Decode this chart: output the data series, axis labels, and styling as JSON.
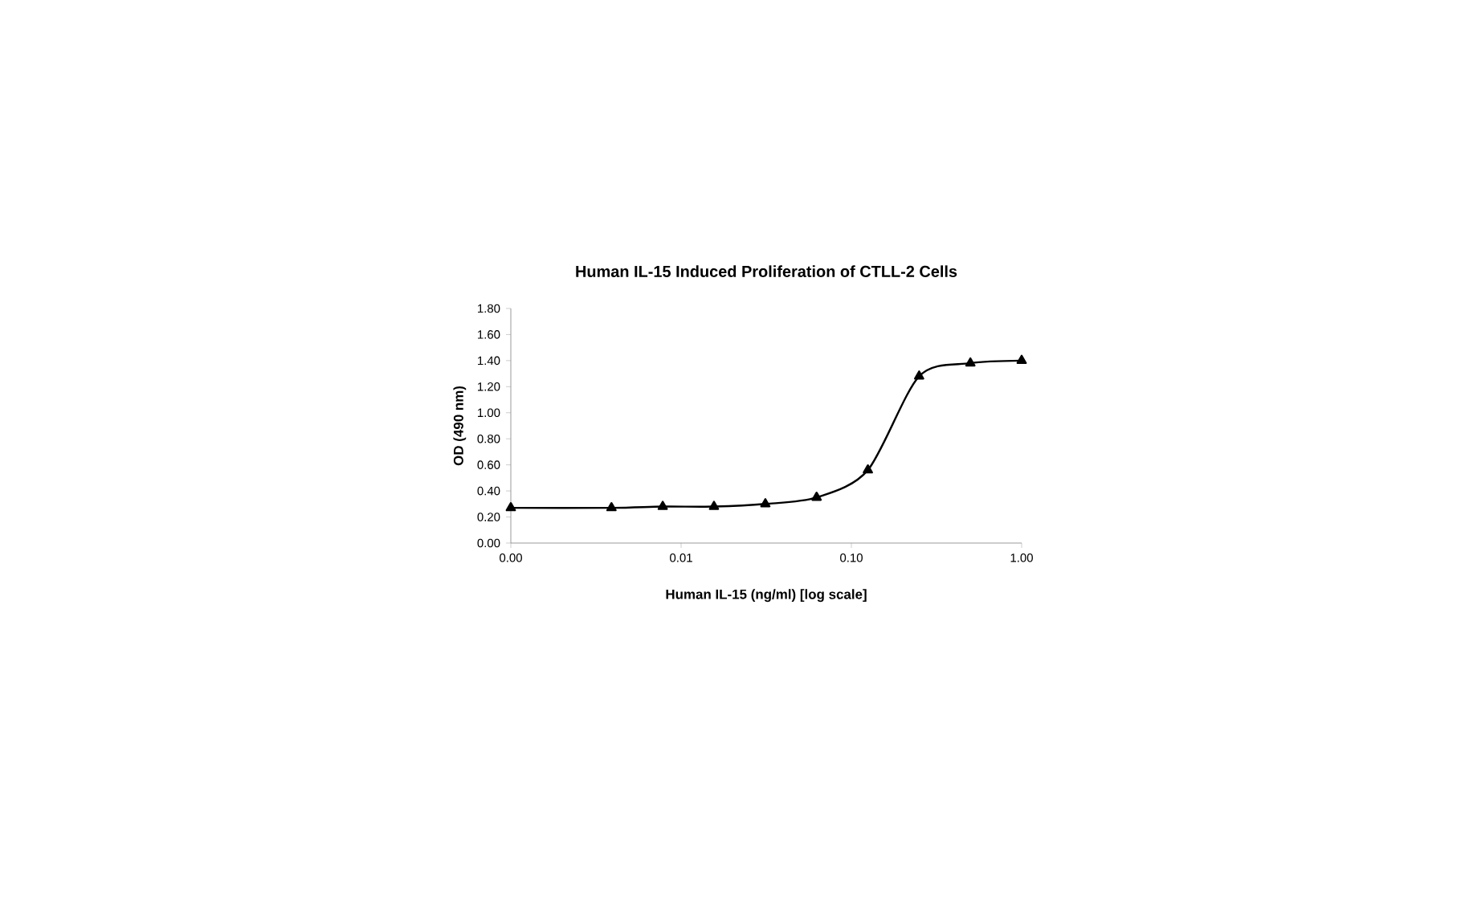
{
  "chart_data": {
    "type": "line",
    "title": "Human IL-15 Induced Proliferation of CTLL-2 Cells",
    "xlabel": "Human IL-15 (ng/ml) [log scale]",
    "ylabel": "OD (490 nm)",
    "x": [
      0.001,
      0.0039,
      0.0078,
      0.0156,
      0.03125,
      0.0625,
      0.125,
      0.25,
      0.5,
      1.0
    ],
    "series": [
      {
        "color": "#000000",
        "values": [
          0.27,
          0.27,
          0.28,
          0.28,
          0.3,
          0.35,
          0.56,
          1.28,
          1.38,
          1.4
        ]
      }
    ],
    "log": "x",
    "marker": "triangle",
    "line_style": "solid",
    "xlim": [
      0.001,
      1.0
    ],
    "xticks": [
      {
        "value": 0.001,
        "label": "0.00"
      },
      {
        "value": 0.01,
        "label": "0.01"
      },
      {
        "value": 0.1,
        "label": "0.10"
      },
      {
        "value": 1.0,
        "label": "1.00"
      }
    ],
    "ylim": [
      0,
      1.8
    ],
    "yticks": [
      {
        "value": 0,
        "label": "0.00"
      },
      {
        "value": 0.2,
        "label": "0.20"
      },
      {
        "value": 0.4,
        "label": "0.40"
      },
      {
        "value": 0.6,
        "label": "0.60"
      },
      {
        "value": 0.8,
        "label": "0.80"
      },
      {
        "value": 1.0,
        "label": "1.00"
      },
      {
        "value": 1.2,
        "label": "1.20"
      },
      {
        "value": 1.4,
        "label": "1.40"
      },
      {
        "value": 1.6,
        "label": "1.60"
      },
      {
        "value": 1.8,
        "label": "1.80"
      }
    ]
  }
}
